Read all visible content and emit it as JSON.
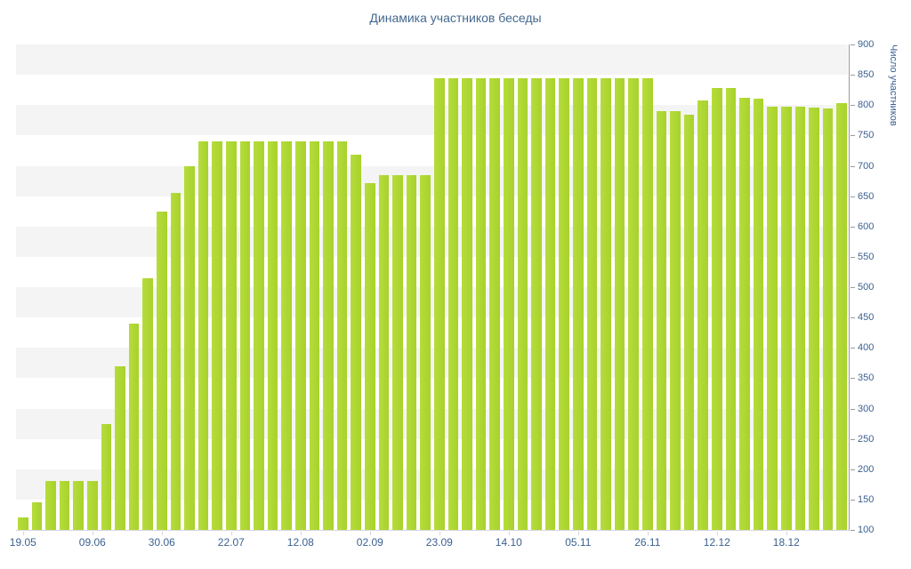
{
  "chart_data": {
    "type": "bar",
    "title": "Динамика участников беседы",
    "xlabel": "",
    "ylabel": "Число участников",
    "ylim": [
      100,
      900
    ],
    "yticks": [
      900,
      850,
      800,
      750,
      700,
      650,
      600,
      550,
      500,
      450,
      400,
      350,
      300,
      250,
      200,
      150,
      100
    ],
    "x_tick_labels": [
      "19.05",
      "09.06",
      "30.06",
      "22.07",
      "12.08",
      "02.09",
      "23.09",
      "14.10",
      "05.11",
      "26.11",
      "12.12",
      "18.12"
    ],
    "x_tick_every": 5,
    "values": [
      120,
      145,
      180,
      180,
      180,
      180,
      275,
      370,
      440,
      515,
      625,
      655,
      700,
      740,
      740,
      740,
      740,
      740,
      740,
      740,
      740,
      740,
      740,
      740,
      718,
      672,
      685,
      685,
      685,
      685,
      845,
      845,
      845,
      845,
      845,
      845,
      845,
      845,
      845,
      845,
      845,
      845,
      845,
      845,
      845,
      845,
      790,
      790,
      785,
      808,
      828,
      828,
      812,
      810,
      797,
      797,
      797,
      796,
      795,
      803
    ],
    "legend": "none",
    "grid": "alternating-horizontal-bands"
  },
  "colors": {
    "bar": "#a8d22b",
    "bar_top": "#b6dc3d",
    "band": "#f4f4f4",
    "title_text": "#44688f",
    "axis_text": "#3c6191",
    "y_axis_line": "#9a9a9a",
    "x_axis_line": "#d6d6d6"
  }
}
